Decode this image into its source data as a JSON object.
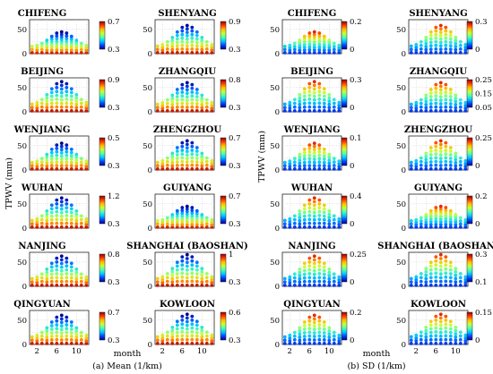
{
  "figure": {
    "ylabel": "TPWV (mm)",
    "xlabel": "month",
    "captions": [
      "(a) Mean (1/km)",
      "(b) SD (1/km)"
    ],
    "x_ticks": [
      "2",
      "6",
      "10"
    ],
    "y_ticks": [
      "0",
      "50"
    ],
    "colormap": [
      "#00008f",
      "#0046ff",
      "#00c8ff",
      "#4fffaf",
      "#c8ff37",
      "#ffbe00",
      "#ff3c00",
      "#8f0000"
    ]
  },
  "chart_data": [
    {
      "type": "scatter",
      "group": "(a) Mean (1/km)",
      "title": "CHIFENG",
      "cbar_ticks": [
        "0.7",
        "0.3"
      ],
      "peak": 45
    },
    {
      "type": "scatter",
      "group": "(a) Mean (1/km)",
      "title": "SHENYANG",
      "cbar_ticks": [
        "0.9",
        "0.3"
      ],
      "peak": 58
    },
    {
      "type": "scatter",
      "group": "(a) Mean (1/km)",
      "title": "BEIJING",
      "cbar_ticks": [
        "0.9",
        "0.3"
      ],
      "peak": 62
    },
    {
      "type": "scatter",
      "group": "(a) Mean (1/km)",
      "title": "ZHANGQIU",
      "cbar_ticks": [
        "0.8",
        "0.3"
      ],
      "peak": 60
    },
    {
      "type": "scatter",
      "group": "(a) Mean (1/km)",
      "title": "WENJIANG",
      "cbar_ticks": [
        "0.5",
        "0.3"
      ],
      "peak": 55
    },
    {
      "type": "scatter",
      "group": "(a) Mean (1/km)",
      "title": "ZHENGZHOU",
      "cbar_ticks": [
        "0.7",
        "0.3"
      ],
      "peak": 60
    },
    {
      "type": "scatter",
      "group": "(a) Mean (1/km)",
      "title": "WUHAN",
      "cbar_ticks": [
        "1.2",
        "0.3"
      ],
      "peak": 62
    },
    {
      "type": "scatter",
      "group": "(a) Mean (1/km)",
      "title": "GUIYANG",
      "cbar_ticks": [
        "0.7",
        "0.3"
      ],
      "peak": 45
    },
    {
      "type": "scatter",
      "group": "(a) Mean (1/km)",
      "title": "NANJING",
      "cbar_ticks": [
        "0.8",
        "0.3"
      ],
      "peak": 62
    },
    {
      "type": "scatter",
      "group": "(a) Mean (1/km)",
      "title": "SHANGHAI (BAOSHAN)",
      "cbar_ticks": [
        "1",
        "0.3"
      ],
      "peak": 65
    },
    {
      "type": "scatter",
      "group": "(a) Mean (1/km)",
      "title": "QINGYUAN",
      "cbar_ticks": [
        "0.7",
        "0.3"
      ],
      "peak": 60
    },
    {
      "type": "scatter",
      "group": "(a) Mean (1/km)",
      "title": "KOWLOON",
      "cbar_ticks": [
        "0.6",
        "0.3"
      ],
      "peak": 62
    },
    {
      "type": "scatter",
      "group": "(b) SD (1/km)",
      "title": "CHIFENG",
      "cbar_ticks": [
        "0.2",
        "0"
      ],
      "peak": 45
    },
    {
      "type": "scatter",
      "group": "(b) SD (1/km)",
      "title": "SHENYANG",
      "cbar_ticks": [
        "0.3",
        "0"
      ],
      "peak": 58
    },
    {
      "type": "scatter",
      "group": "(b) SD (1/km)",
      "title": "BEIJING",
      "cbar_ticks": [
        "0.3",
        "0"
      ],
      "peak": 62
    },
    {
      "type": "scatter",
      "group": "(b) SD (1/km)",
      "title": "ZHANGQIU",
      "cbar_ticks": [
        "0.25",
        "0.15",
        "0.05"
      ],
      "peak": 60
    },
    {
      "type": "scatter",
      "group": "(b) SD (1/km)",
      "title": "WENJIANG",
      "cbar_ticks": [
        "0.1",
        "0"
      ],
      "peak": 55
    },
    {
      "type": "scatter",
      "group": "(b) SD (1/km)",
      "title": "ZHENGZHOU",
      "cbar_ticks": [
        "0.25",
        "0"
      ],
      "peak": 60
    },
    {
      "type": "scatter",
      "group": "(b) SD (1/km)",
      "title": "WUHAN",
      "cbar_ticks": [
        "0.4",
        "0"
      ],
      "peak": 62
    },
    {
      "type": "scatter",
      "group": "(b) SD (1/km)",
      "title": "GUIYANG",
      "cbar_ticks": [
        "0.2",
        "0"
      ],
      "peak": 45
    },
    {
      "type": "scatter",
      "group": "(b) SD (1/km)",
      "title": "NANJING",
      "cbar_ticks": [
        "0.25",
        "0"
      ],
      "peak": 62
    },
    {
      "type": "scatter",
      "group": "(b) SD (1/km)",
      "title": "SHANGHAI (BAOSHAN)",
      "cbar_ticks": [
        "0.3",
        "0.1"
      ],
      "peak": 65
    },
    {
      "type": "scatter",
      "group": "(b) SD (1/km)",
      "title": "QINGYUAN",
      "cbar_ticks": [
        "0.2",
        "0"
      ],
      "peak": 60
    },
    {
      "type": "scatter",
      "group": "(b) SD (1/km)",
      "title": "KOWLOON",
      "cbar_ticks": [
        "0.15",
        "0"
      ],
      "peak": 62
    }
  ]
}
